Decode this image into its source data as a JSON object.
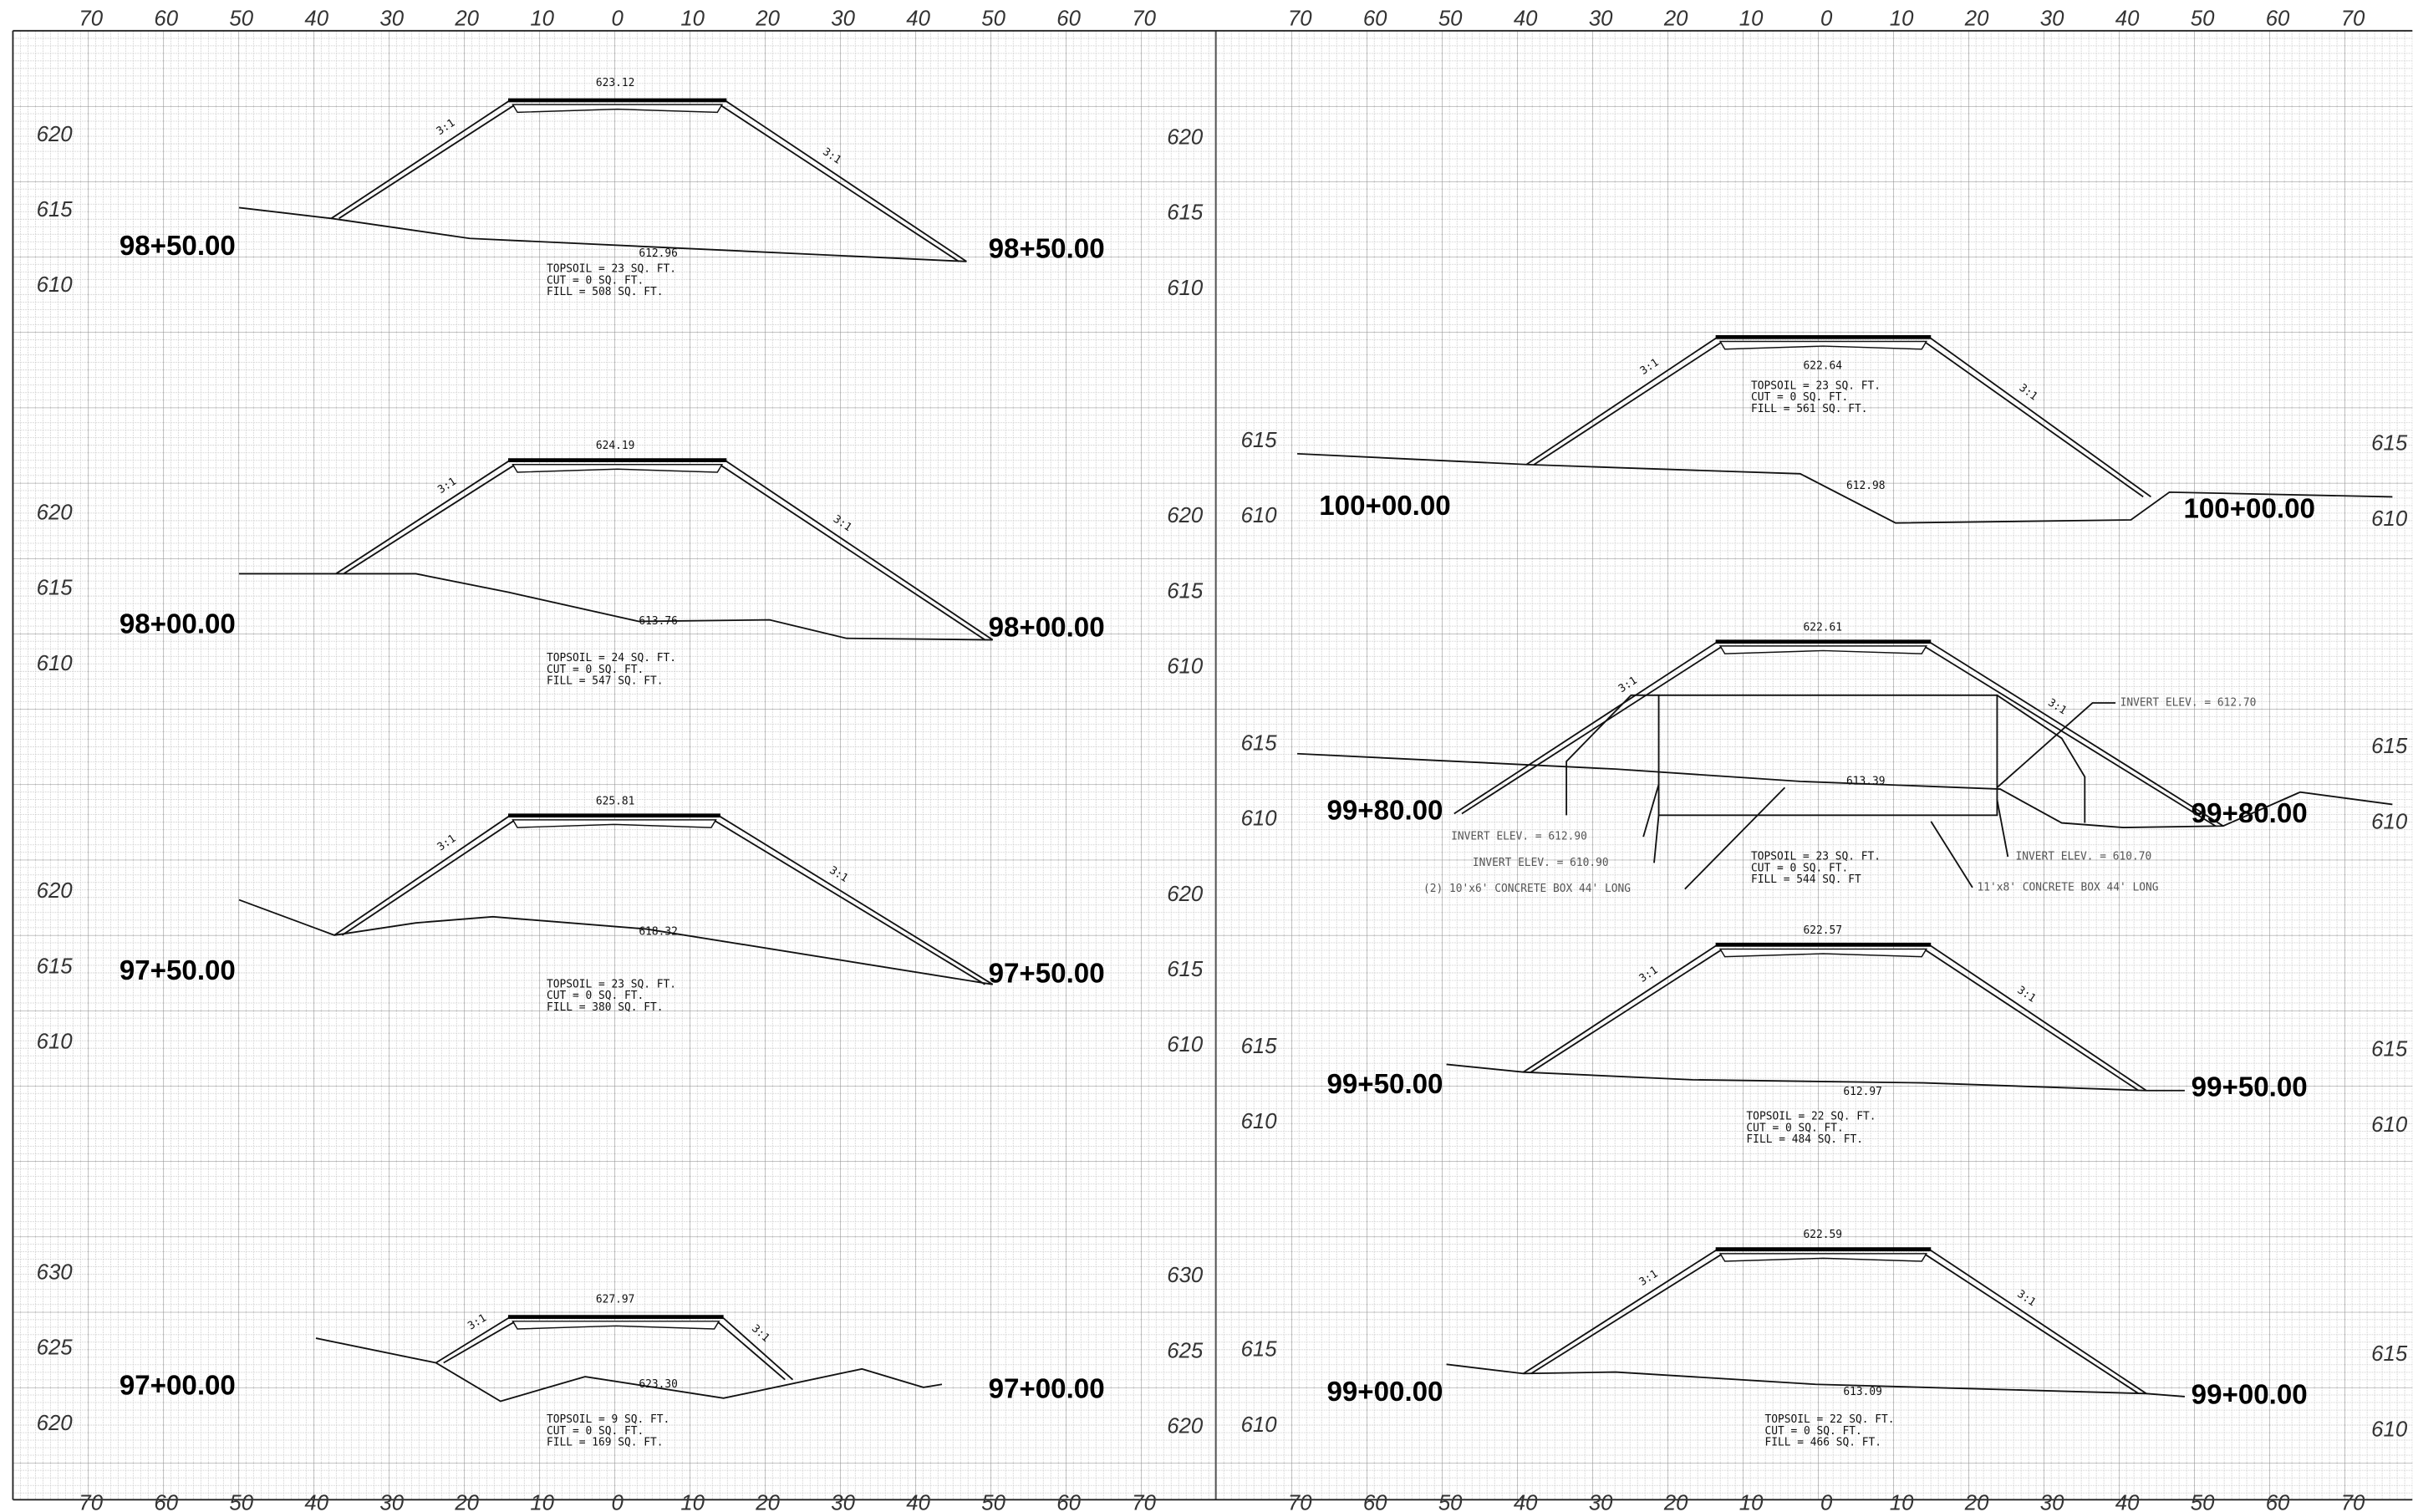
{
  "sheets": [
    {
      "scale_top": [
        70,
        60,
        50,
        40,
        30,
        20,
        10,
        0,
        10,
        20,
        30,
        40,
        50,
        60,
        70
      ],
      "scale_bottom": [
        70,
        60,
        50,
        40,
        30,
        20,
        10,
        0,
        10,
        20,
        30,
        40,
        50,
        60,
        70
      ],
      "sections": [
        {
          "station": "98+50.00",
          "elevations_left": [
            620,
            615,
            610
          ],
          "elevations_right": [
            620,
            615,
            610
          ],
          "top_elev": "623.12",
          "ground_elev": "612.96",
          "slope_left": "3:1",
          "slope_right": "3:1",
          "quantities": [
            "TOPSOIL = 23 SQ. FT.",
            "CUT = 0 SQ. FT.",
            "FILL = 508 SQ. FT."
          ]
        },
        {
          "station": "98+00.00",
          "elevations_left": [
            620,
            615,
            610
          ],
          "elevations_right": [
            620,
            615,
            610
          ],
          "top_elev": "624.19",
          "ground_elev": "613.76",
          "slope_left": "3:1",
          "slope_right": "3:1",
          "quantities": [
            "TOPSOIL = 24 SQ. FT.",
            "CUT = 0 SQ. FT.",
            "FILL = 547 SQ. FT."
          ]
        },
        {
          "station": "97+50.00",
          "elevations_left": [
            620,
            615,
            610
          ],
          "elevations_right": [
            620,
            615,
            610
          ],
          "top_elev": "625.81",
          "ground_elev": "618.32",
          "slope_left": "3:1",
          "slope_right": "3:1",
          "quantities": [
            "TOPSOIL = 23 SQ. FT.",
            "CUT = 0 SQ. FT.",
            "FILL = 380 SQ. FT."
          ]
        },
        {
          "station": "97+00.00",
          "elevations_left": [
            630,
            625,
            620
          ],
          "elevations_right": [
            630,
            625,
            620
          ],
          "top_elev": "627.97",
          "ground_elev": "623.30",
          "slope_left": "3:1",
          "slope_right": "3:1",
          "quantities": [
            "TOPSOIL = 9 SQ. FT.",
            "CUT = 0 SQ. FT.",
            "FILL = 169 SQ. FT."
          ]
        }
      ]
    },
    {
      "scale_top": [
        70,
        60,
        50,
        40,
        30,
        20,
        10,
        0,
        10,
        20,
        30,
        40,
        50,
        60,
        70
      ],
      "scale_bottom": [
        70,
        60,
        50,
        40,
        30,
        20,
        10,
        0,
        10,
        20,
        30,
        40,
        50,
        60,
        70
      ],
      "sections": [
        {
          "station": "100+00.00",
          "elevations_left": [
            615,
            610
          ],
          "elevations_right": [
            615,
            610
          ],
          "top_elev": "622.64",
          "ground_elev": "612.98",
          "slope_left": "3:1",
          "slope_right": "3:1",
          "quantities": [
            "TOPSOIL = 23 SQ. FT.",
            "CUT = 0 SQ. FT.",
            "FILL = 561 SQ. FT."
          ]
        },
        {
          "station": "99+80.00",
          "elevations_left": [
            615,
            610
          ],
          "elevations_right": [
            615,
            610
          ],
          "top_elev": "622.61",
          "ground_elev": "613.39",
          "slope_left": "3:1",
          "slope_right": "3:1",
          "quantities": [
            "TOPSOIL = 23 SQ. FT.",
            "CUT = 0 SQ. FT.",
            "FILL = 544 SQ. FT"
          ],
          "notes": [
            "INVERT ELEV. = 612.70",
            "INVERT ELEV. = 612.90",
            "INVERT ELEV. = 610.90",
            "(2) 10'x6' CONCRETE BOX 44' LONG",
            "INVERT ELEV. = 610.70",
            "11'x8' CONCRETE BOX 44' LONG"
          ]
        },
        {
          "station": "99+50.00",
          "elevations_left": [
            615,
            610
          ],
          "elevations_right": [
            615,
            610
          ],
          "top_elev": "622.57",
          "ground_elev": "612.97",
          "slope_left": "3:1",
          "slope_right": "3:1",
          "quantities": [
            "TOPSOIL = 22 SQ. FT.",
            "CUT = 0 SQ. FT.",
            "FILL = 484 SQ. FT."
          ]
        },
        {
          "station": "99+00.00",
          "elevations_left": [
            615,
            610
          ],
          "elevations_right": [
            615,
            610
          ],
          "top_elev": "622.59",
          "ground_elev": "613.09",
          "slope_left": "3:1",
          "slope_right": "3:1",
          "quantities": [
            "TOPSOIL = 22 SQ. FT.",
            "CUT = 0 SQ. FT.",
            "FILL = 466 SQ. FT."
          ]
        }
      ]
    }
  ]
}
